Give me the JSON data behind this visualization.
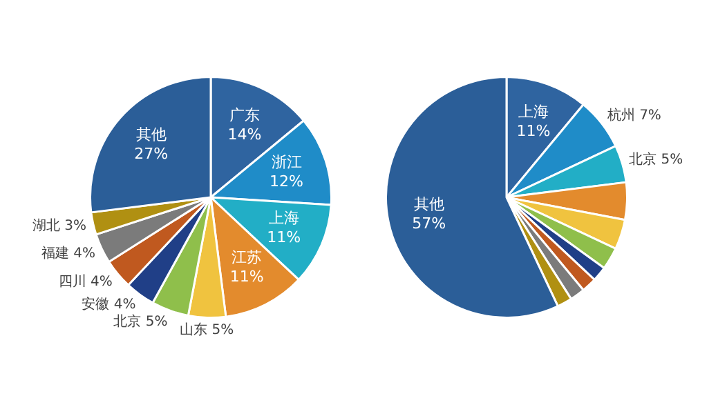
{
  "chart_data": [
    {
      "type": "pie",
      "categories": [
        "广东",
        "浙江",
        "上海",
        "江苏",
        "山东",
        "北京",
        "安徽",
        "四川",
        "福建",
        "湖北",
        "其他"
      ],
      "values": [
        14,
        12,
        11,
        11,
        5,
        5,
        4,
        4,
        4,
        3,
        27
      ],
      "value_labels": [
        "14%",
        "12%",
        "11%",
        "11%",
        "5%",
        "5%",
        "4%",
        "4%",
        "4%",
        "3%",
        "27%"
      ],
      "colors": [
        "#2f64a0",
        "#1f8cc8",
        "#22aec6",
        "#e38b2d",
        "#f0c33f",
        "#8fbf4b",
        "#203f87",
        "#c0591f",
        "#7b7b7b",
        "#b09012",
        "#2b5e98"
      ]
    },
    {
      "type": "pie",
      "categories": [
        "上海",
        "杭州",
        "北京",
        null,
        null,
        null,
        null,
        null,
        null,
        null,
        "其他"
      ],
      "values": [
        11,
        7,
        5,
        5,
        4,
        3,
        2,
        2,
        2,
        2,
        57
      ],
      "value_labels": [
        "11%",
        "7%",
        "5%",
        null,
        null,
        null,
        null,
        null,
        null,
        null,
        "57%"
      ],
      "colors": [
        "#2f64a0",
        "#1f8cc8",
        "#22aec6",
        "#e38b2d",
        "#f0c33f",
        "#8fbf4b",
        "#203f87",
        "#c0591f",
        "#7b7b7b",
        "#b09012",
        "#2b5e98"
      ]
    }
  ]
}
